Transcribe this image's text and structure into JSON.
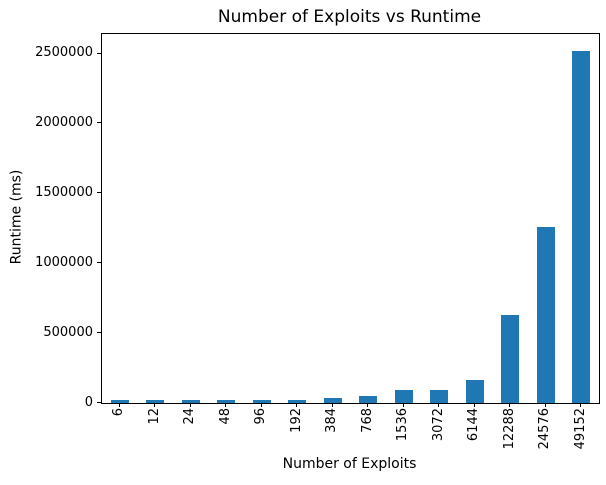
{
  "chart_data": {
    "type": "bar",
    "title": "Number of Exploits vs Runtime",
    "xlabel": "Number of Exploits",
    "ylabel": "Runtime (ms)",
    "categories": [
      "6",
      "12",
      "24",
      "48",
      "96",
      "192",
      "384",
      "768",
      "1536",
      "3072",
      "6144",
      "12288",
      "24576",
      "49152"
    ],
    "values": [
      20000,
      20000,
      20000,
      20000,
      21000,
      25000,
      36000,
      52000,
      90000,
      92000,
      165000,
      630000,
      1260000,
      2515000
    ],
    "ylim": [
      0,
      2640000
    ],
    "yticks": [
      0,
      500000,
      1000000,
      1500000,
      2000000,
      2500000
    ],
    "ytick_labels": [
      "0",
      "500000",
      "1000000",
      "1500000",
      "2000000",
      "2500000"
    ],
    "bar_color": "#1f77b4",
    "grid": false,
    "legend": null,
    "x_tick_rotation": 90
  }
}
